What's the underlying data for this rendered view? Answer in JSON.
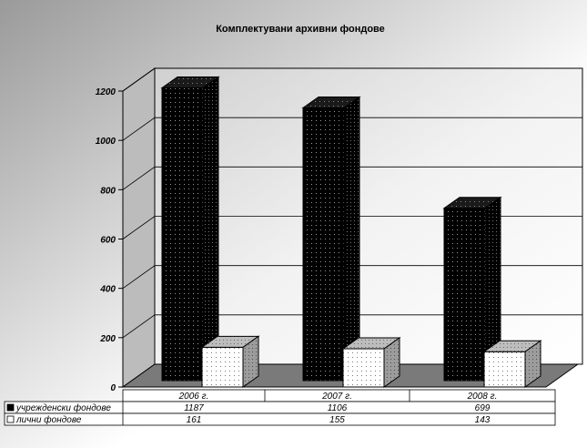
{
  "chart_data": {
    "type": "bar",
    "title": "Комплектувани архивни фондове",
    "categories": [
      "2006 г.",
      "2007 г.",
      "2008 г."
    ],
    "series": [
      {
        "name": "учрежденски фондове",
        "values": [
          1187,
          1106,
          699
        ],
        "color": "#000000",
        "pattern": "white-dots"
      },
      {
        "name": "лични фондове",
        "values": [
          161,
          155,
          143
        ],
        "color": "#ffffff",
        "pattern": "gray-dots"
      }
    ],
    "ylim": [
      0,
      1200
    ],
    "yticks": [
      0,
      200,
      400,
      600,
      800,
      1000,
      1200
    ],
    "grid": true,
    "legend": "data-table",
    "style": "3d-clustered-column"
  }
}
